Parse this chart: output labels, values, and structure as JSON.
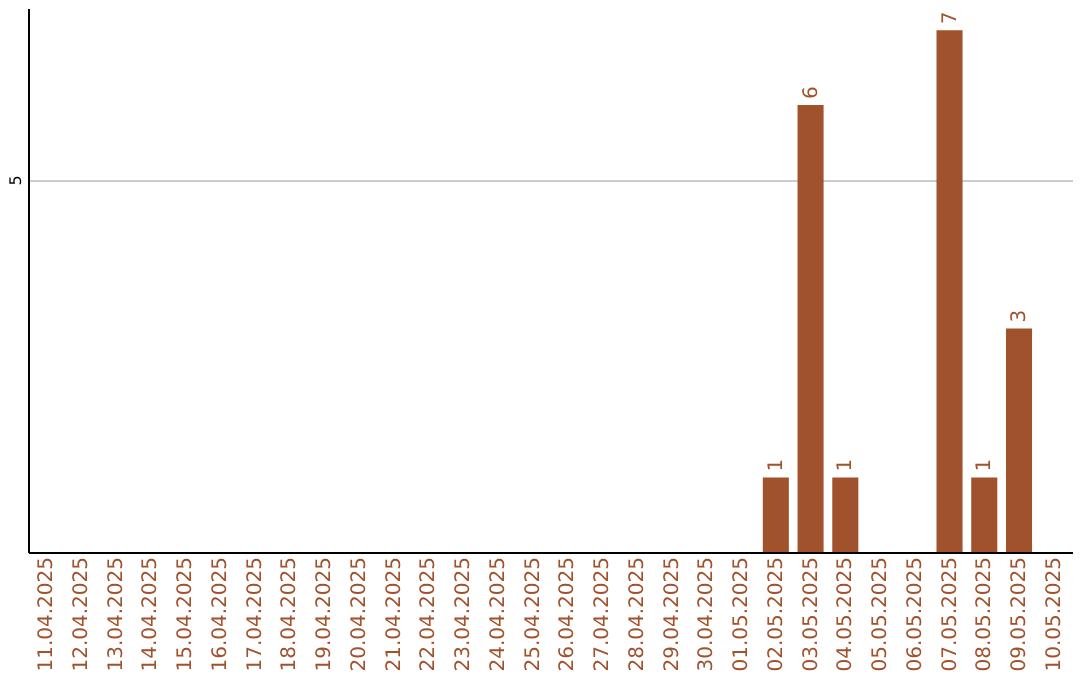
{
  "chart_data": {
    "type": "bar",
    "categories": [
      "11.04.2025",
      "12.04.2025",
      "13.04.2025",
      "14.04.2025",
      "15.04.2025",
      "16.04.2025",
      "17.04.2025",
      "18.04.2025",
      "19.04.2025",
      "20.04.2025",
      "21.04.2025",
      "22.04.2025",
      "23.04.2025",
      "24.04.2025",
      "25.04.2025",
      "26.04.2025",
      "27.04.2025",
      "28.04.2025",
      "29.04.2025",
      "30.04.2025",
      "01.05.2025",
      "02.05.2025",
      "03.05.2025",
      "04.05.2025",
      "05.05.2025",
      "06.05.2025",
      "07.05.2025",
      "08.05.2025",
      "09.05.2025",
      "10.05.2025"
    ],
    "values": [
      null,
      null,
      null,
      null,
      null,
      null,
      null,
      null,
      null,
      null,
      null,
      null,
      null,
      null,
      null,
      null,
      null,
      null,
      null,
      null,
      null,
      1,
      6,
      1,
      null,
      null,
      7,
      1,
      3,
      null
    ],
    "color": "#a0522d",
    "ylim": [
      0,
      7.3
    ],
    "yticks": [
      5
    ],
    "grid": "y",
    "data_labels": true
  }
}
